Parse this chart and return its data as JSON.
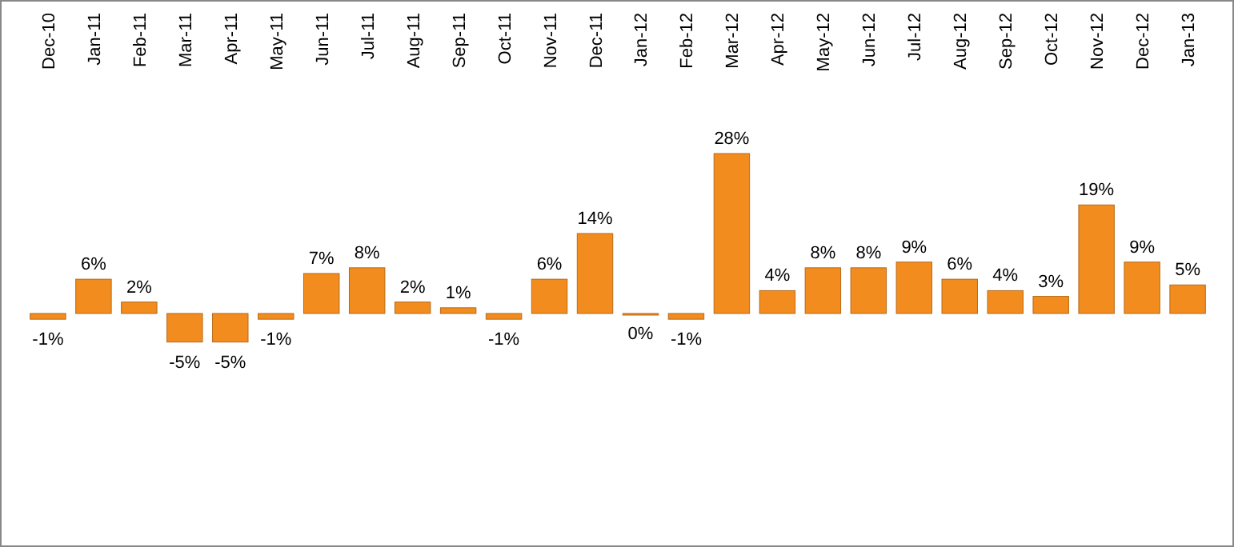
{
  "chart_data": {
    "type": "bar",
    "categories": [
      "Dec-10",
      "Jan-11",
      "Feb-11",
      "Mar-11",
      "Apr-11",
      "May-11",
      "Jun-11",
      "Jul-11",
      "Aug-11",
      "Sep-11",
      "Oct-11",
      "Nov-11",
      "Dec-11",
      "Jan-12",
      "Feb-12",
      "Mar-12",
      "Apr-12",
      "May-12",
      "Jun-12",
      "Jul-12",
      "Aug-12",
      "Sep-12",
      "Oct-12",
      "Nov-12",
      "Dec-12",
      "Jan-13"
    ],
    "values": [
      -1,
      6,
      2,
      -5,
      -5,
      -1,
      7,
      8,
      2,
      1,
      -1,
      6,
      14,
      0,
      -1,
      28,
      4,
      8,
      8,
      9,
      6,
      4,
      3,
      19,
      9,
      5
    ],
    "value_labels": [
      "-1%",
      "6%",
      "2%",
      "-5%",
      "-5%",
      "-1%",
      "7%",
      "8%",
      "2%",
      "1%",
      "-1%",
      "6%",
      "14%",
      "0%",
      "-1%",
      "28%",
      "4%",
      "8%",
      "8%",
      "9%",
      "6%",
      "4%",
      "3%",
      "19%",
      "9%",
      "5%"
    ],
    "color": "#f28c1e"
  }
}
